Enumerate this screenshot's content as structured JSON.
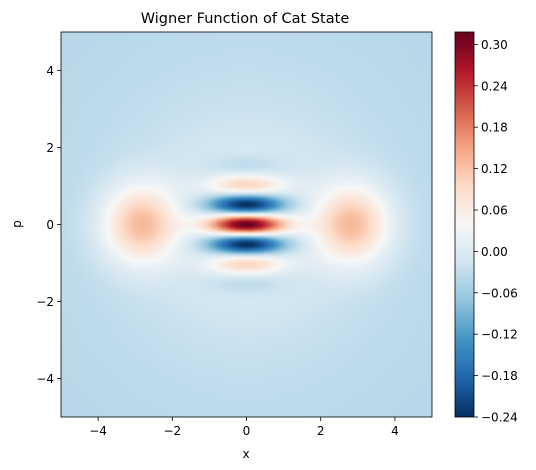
{
  "chart_data": {
    "type": "heatmap",
    "title": "Wigner Function of Cat State",
    "xlabel": "x",
    "ylabel": "p",
    "xlim": [
      -5,
      5
    ],
    "ylim": [
      -5,
      5
    ],
    "x_ticks": [
      -4,
      -2,
      0,
      2,
      4
    ],
    "y_ticks": [
      -4,
      -2,
      0,
      2,
      4
    ],
    "colorbar": {
      "colormap": "RdBu_r",
      "vmin": -0.24,
      "vmax": 0.318,
      "ticks": [
        -0.24,
        -0.18,
        -0.12,
        -0.06,
        0.0,
        0.06,
        0.12,
        0.18,
        0.24,
        0.3
      ],
      "tick_labels": [
        "−0.24",
        "−0.18",
        "−0.12",
        "−0.06",
        "0.00",
        "0.06",
        "0.12",
        "0.18",
        "0.24",
        "0.30"
      ]
    },
    "features": {
      "gaussian_peaks": [
        {
          "x": -2.85,
          "p": 0.0,
          "value": 0.15
        },
        {
          "x": 2.85,
          "p": 0.0,
          "value": 0.15
        }
      ],
      "interference_fringes": [
        {
          "x": 0.0,
          "p": 1.1,
          "value": 0.12
        },
        {
          "x": 0.0,
          "p": 0.55,
          "value": -0.24
        },
        {
          "x": 0.0,
          "p": 0.0,
          "value": 0.318
        },
        {
          "x": 0.0,
          "p": -0.55,
          "value": -0.24
        },
        {
          "x": 0.0,
          "p": -1.1,
          "value": 0.12
        }
      ],
      "background_value": -0.04
    },
    "grid": false
  }
}
